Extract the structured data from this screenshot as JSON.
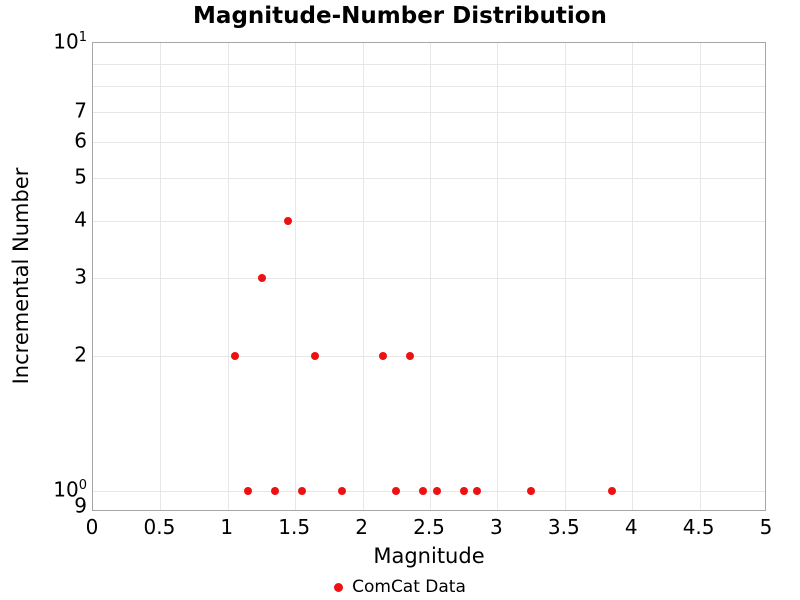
{
  "title": "Magnitude-Number Distribution",
  "axes": {
    "x": {
      "label": "Magnitude",
      "min": 0,
      "max": 5,
      "tick_values": [
        0,
        0.5,
        1,
        1.5,
        2,
        2.5,
        3,
        3.5,
        4,
        4.5,
        5
      ],
      "tick_labels": [
        "0",
        "0.5",
        "1",
        "1.5",
        "2",
        "2.5",
        "3",
        "3.5",
        "4",
        "4.5",
        "5"
      ]
    },
    "y": {
      "label": "Incremental Number",
      "scale": "log",
      "min": 0.9,
      "max": 10,
      "ticks": [
        {
          "value": 10,
          "mantissa": "10",
          "exponent": "1"
        },
        {
          "value": 7,
          "mantissa": "7"
        },
        {
          "value": 6,
          "mantissa": "6"
        },
        {
          "value": 5,
          "mantissa": "5"
        },
        {
          "value": 4,
          "mantissa": "4"
        },
        {
          "value": 3,
          "mantissa": "3"
        },
        {
          "value": 2,
          "mantissa": "2"
        },
        {
          "value": 1,
          "mantissa": "10",
          "exponent": "0"
        },
        {
          "value": 0.9,
          "mantissa": "9"
        }
      ]
    }
  },
  "grid": {
    "vertical_x": [
      0.5,
      1,
      1.5,
      2,
      2.5,
      3,
      3.5,
      4,
      4.5
    ],
    "horizontal_y": [
      1,
      2,
      3,
      4,
      5,
      6,
      7,
      8,
      9
    ]
  },
  "legend": {
    "position": "bottom-center",
    "items": [
      {
        "label": "ComCat Data",
        "color": "#ee1111",
        "marker": "circle"
      }
    ]
  },
  "colors": {
    "marker": "#ee1111",
    "grid": "#e7e7e7",
    "frame": "#a6a6a6",
    "text": "#000000"
  },
  "chart_data": {
    "type": "scatter",
    "title": "Magnitude-Number Distribution",
    "xlabel": "Magnitude",
    "ylabel": "Incremental Number",
    "xlim": [
      0,
      5
    ],
    "ylim": [
      0.9,
      10
    ],
    "yscale": "log",
    "grid": true,
    "legend_position": "bottom",
    "series": [
      {
        "name": "ComCat Data",
        "color": "#ee1111",
        "marker": "circle",
        "x": [
          1.05,
          1.15,
          1.25,
          1.35,
          1.45,
          1.55,
          1.65,
          1.85,
          2.15,
          2.25,
          2.35,
          2.45,
          2.55,
          2.75,
          2.85,
          3.25,
          3.85
        ],
        "y": [
          2,
          1,
          3,
          1,
          4,
          1,
          2,
          1,
          2,
          1,
          2,
          1,
          1,
          1,
          1,
          1,
          1
        ]
      }
    ]
  }
}
